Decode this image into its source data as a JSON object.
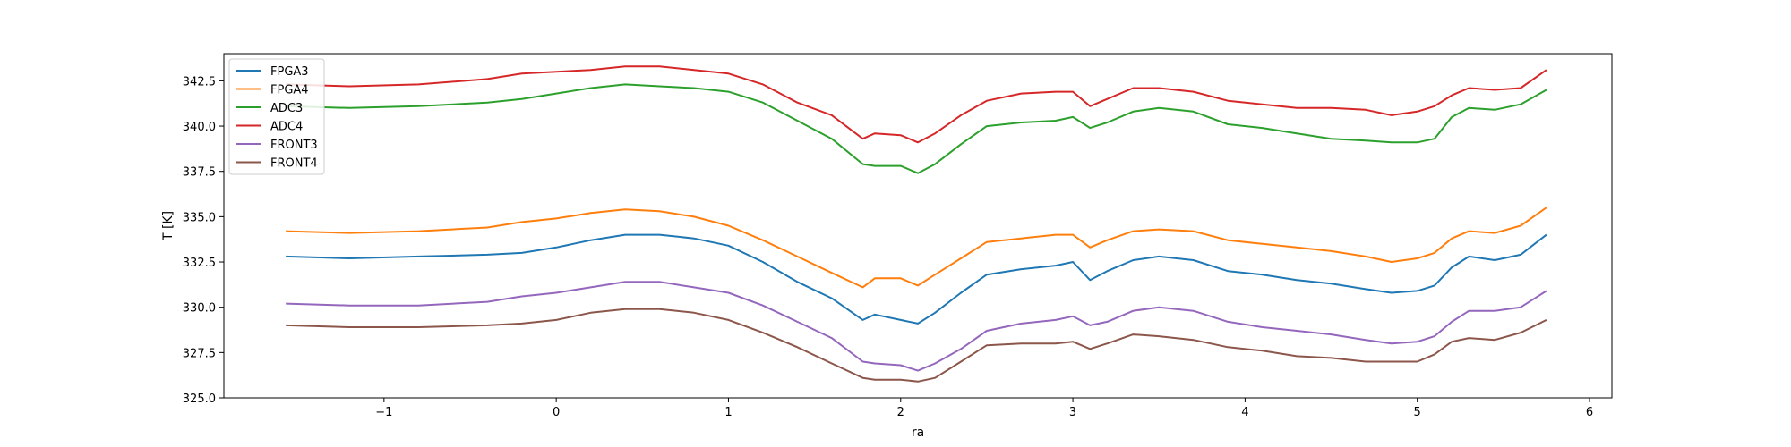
{
  "chart_data": {
    "type": "line",
    "title": "",
    "xlabel": "ra",
    "ylabel": "T [K]",
    "xlim": [
      -1.93,
      6.13
    ],
    "ylim": [
      325.0,
      344.0
    ],
    "xticks": [
      -1,
      0,
      1,
      2,
      3,
      4,
      5,
      6
    ],
    "xtick_labels": [
      "−1",
      "0",
      "1",
      "2",
      "3",
      "4",
      "5",
      "6"
    ],
    "yticks": [
      325.0,
      327.5,
      330.0,
      332.5,
      335.0,
      337.5,
      340.0,
      342.5
    ],
    "ytick_labels": [
      "325.0",
      "327.5",
      "330.0",
      "332.5",
      "335.0",
      "337.5",
      "340.0",
      "342.5"
    ],
    "grid": false,
    "legend": "top-left",
    "series": [
      {
        "name": "FPGA3",
        "color": "#1f77b4",
        "x": [
          -1.57,
          -1.2,
          -0.8,
          -0.4,
          -0.2,
          0.0,
          0.2,
          0.4,
          0.6,
          0.8,
          1.0,
          1.2,
          1.4,
          1.6,
          1.78,
          1.85,
          2.0,
          2.1,
          2.2,
          2.35,
          2.5,
          2.7,
          2.9,
          3.0,
          3.1,
          3.2,
          3.35,
          3.5,
          3.7,
          3.9,
          4.1,
          4.3,
          4.5,
          4.7,
          4.85,
          5.0,
          5.1,
          5.2,
          5.3,
          5.45,
          5.6,
          5.75
        ],
        "y": [
          332.8,
          332.7,
          332.8,
          332.9,
          333.0,
          333.3,
          333.7,
          334.0,
          334.0,
          333.8,
          333.4,
          332.5,
          331.4,
          330.5,
          329.3,
          329.6,
          329.3,
          329.1,
          329.7,
          330.8,
          331.8,
          332.1,
          332.3,
          332.5,
          331.5,
          332.0,
          332.6,
          332.8,
          332.6,
          332.0,
          331.8,
          331.5,
          331.3,
          331.0,
          330.8,
          330.9,
          331.2,
          332.2,
          332.8,
          332.6,
          332.9,
          334.0
        ]
      },
      {
        "name": "FPGA4",
        "color": "#ff7f0e",
        "x": [
          -1.57,
          -1.2,
          -0.8,
          -0.4,
          -0.2,
          0.0,
          0.2,
          0.4,
          0.6,
          0.8,
          1.0,
          1.2,
          1.4,
          1.6,
          1.78,
          1.85,
          2.0,
          2.1,
          2.2,
          2.35,
          2.5,
          2.7,
          2.9,
          3.0,
          3.1,
          3.2,
          3.35,
          3.5,
          3.7,
          3.9,
          4.1,
          4.3,
          4.5,
          4.7,
          4.85,
          5.0,
          5.1,
          5.2,
          5.3,
          5.45,
          5.6,
          5.75
        ],
        "y": [
          334.2,
          334.1,
          334.2,
          334.4,
          334.7,
          334.9,
          335.2,
          335.4,
          335.3,
          335.0,
          334.5,
          333.7,
          332.8,
          331.9,
          331.1,
          331.6,
          331.6,
          331.2,
          331.8,
          332.7,
          333.6,
          333.8,
          334.0,
          334.0,
          333.3,
          333.7,
          334.2,
          334.3,
          334.2,
          333.7,
          333.5,
          333.3,
          333.1,
          332.8,
          332.5,
          332.7,
          333.0,
          333.8,
          334.2,
          334.1,
          334.5,
          335.5
        ]
      },
      {
        "name": "ADC3",
        "color": "#2ca02c",
        "x": [
          -1.57,
          -1.2,
          -0.8,
          -0.4,
          -0.2,
          0.0,
          0.2,
          0.4,
          0.6,
          0.8,
          1.0,
          1.2,
          1.4,
          1.6,
          1.78,
          1.85,
          2.0,
          2.1,
          2.2,
          2.35,
          2.5,
          2.7,
          2.9,
          3.0,
          3.1,
          3.2,
          3.35,
          3.5,
          3.7,
          3.9,
          4.1,
          4.3,
          4.5,
          4.7,
          4.85,
          5.0,
          5.1,
          5.2,
          5.3,
          5.45,
          5.6,
          5.75
        ],
        "y": [
          341.1,
          341.0,
          341.1,
          341.3,
          341.5,
          341.8,
          342.1,
          342.3,
          342.2,
          342.1,
          341.9,
          341.3,
          340.3,
          339.3,
          337.9,
          337.8,
          337.8,
          337.4,
          337.9,
          339.0,
          340.0,
          340.2,
          340.3,
          340.5,
          339.9,
          340.2,
          340.8,
          341.0,
          340.8,
          340.1,
          339.9,
          339.6,
          339.3,
          339.2,
          339.1,
          339.1,
          339.3,
          340.5,
          341.0,
          340.9,
          341.2,
          342.0
        ]
      },
      {
        "name": "ADC4",
        "color": "#d62728",
        "x": [
          -1.57,
          -1.2,
          -0.8,
          -0.4,
          -0.2,
          0.0,
          0.2,
          0.4,
          0.6,
          0.8,
          1.0,
          1.2,
          1.4,
          1.6,
          1.78,
          1.85,
          2.0,
          2.1,
          2.2,
          2.35,
          2.5,
          2.7,
          2.9,
          3.0,
          3.1,
          3.2,
          3.35,
          3.5,
          3.7,
          3.9,
          4.1,
          4.3,
          4.5,
          4.7,
          4.85,
          5.0,
          5.1,
          5.2,
          5.3,
          5.45,
          5.6,
          5.75
        ],
        "y": [
          342.3,
          342.2,
          342.3,
          342.6,
          342.9,
          343.0,
          343.1,
          343.3,
          343.3,
          343.1,
          342.9,
          342.3,
          341.3,
          340.6,
          339.3,
          339.6,
          339.5,
          339.1,
          339.6,
          340.6,
          341.4,
          341.8,
          341.9,
          341.9,
          341.1,
          341.5,
          342.1,
          342.1,
          341.9,
          341.4,
          341.2,
          341.0,
          341.0,
          340.9,
          340.6,
          340.8,
          341.1,
          341.7,
          342.1,
          342.0,
          342.1,
          343.1
        ]
      },
      {
        "name": "FRONT3",
        "color": "#9467bd",
        "x": [
          -1.57,
          -1.2,
          -0.8,
          -0.4,
          -0.2,
          0.0,
          0.2,
          0.4,
          0.6,
          0.8,
          1.0,
          1.2,
          1.4,
          1.6,
          1.78,
          1.85,
          2.0,
          2.1,
          2.2,
          2.35,
          2.5,
          2.7,
          2.9,
          3.0,
          3.1,
          3.2,
          3.35,
          3.5,
          3.7,
          3.9,
          4.1,
          4.3,
          4.5,
          4.7,
          4.85,
          5.0,
          5.1,
          5.2,
          5.3,
          5.45,
          5.6,
          5.75
        ],
        "y": [
          330.2,
          330.1,
          330.1,
          330.3,
          330.6,
          330.8,
          331.1,
          331.4,
          331.4,
          331.1,
          330.8,
          330.1,
          329.2,
          328.3,
          327.0,
          326.9,
          326.8,
          326.5,
          326.9,
          327.7,
          328.7,
          329.1,
          329.3,
          329.5,
          329.0,
          329.2,
          329.8,
          330.0,
          329.8,
          329.2,
          328.9,
          328.7,
          328.5,
          328.2,
          328.0,
          328.1,
          328.4,
          329.2,
          329.8,
          329.8,
          330.0,
          330.9
        ]
      },
      {
        "name": "FRONT4",
        "color": "#8c564b",
        "x": [
          -1.57,
          -1.2,
          -0.8,
          -0.4,
          -0.2,
          0.0,
          0.2,
          0.4,
          0.6,
          0.8,
          1.0,
          1.2,
          1.4,
          1.6,
          1.78,
          1.85,
          2.0,
          2.1,
          2.2,
          2.35,
          2.5,
          2.7,
          2.9,
          3.0,
          3.1,
          3.2,
          3.35,
          3.5,
          3.7,
          3.9,
          4.1,
          4.3,
          4.5,
          4.7,
          4.85,
          5.0,
          5.1,
          5.2,
          5.3,
          5.45,
          5.6,
          5.75
        ],
        "y": [
          329.0,
          328.9,
          328.9,
          329.0,
          329.1,
          329.3,
          329.7,
          329.9,
          329.9,
          329.7,
          329.3,
          328.6,
          327.8,
          326.9,
          326.1,
          326.0,
          326.0,
          325.9,
          326.1,
          327.0,
          327.9,
          328.0,
          328.0,
          328.1,
          327.7,
          328.0,
          328.5,
          328.4,
          328.2,
          327.8,
          327.6,
          327.3,
          327.2,
          327.0,
          327.0,
          327.0,
          327.4,
          328.1,
          328.3,
          328.2,
          328.6,
          329.3
        ]
      }
    ]
  }
}
